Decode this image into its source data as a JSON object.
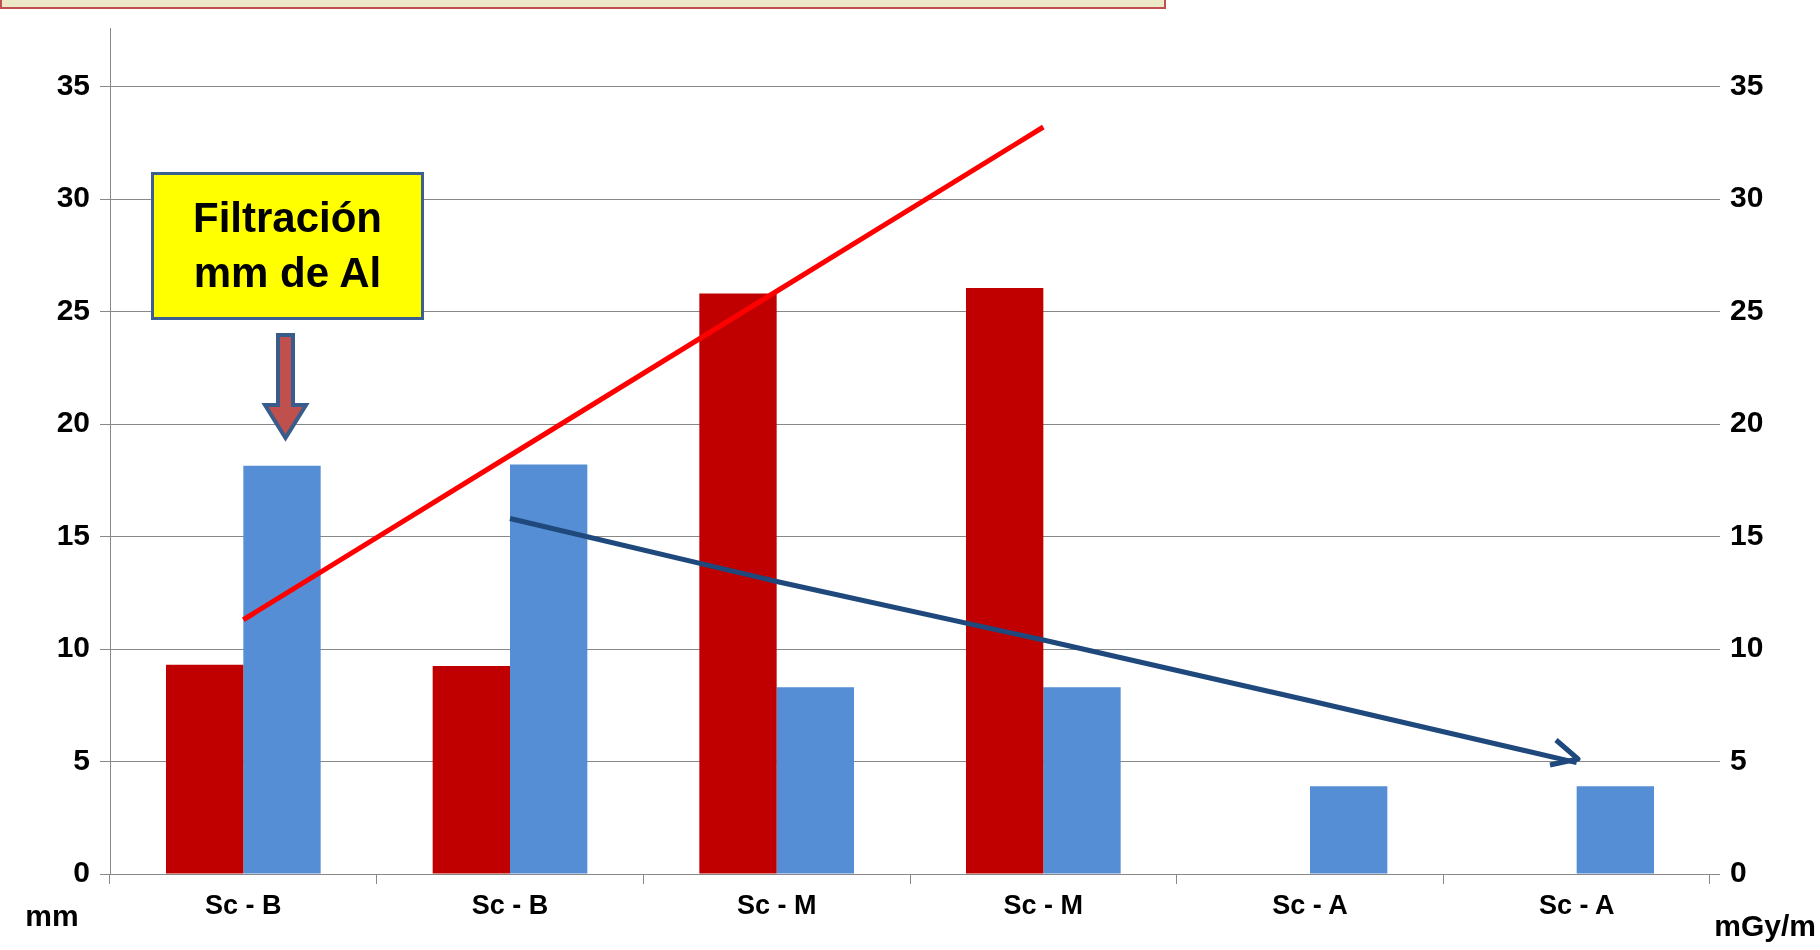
{
  "chart_data": {
    "type": "bar",
    "categories": [
      "Sc - B",
      "Sc - B",
      "Sc - M",
      "Sc - M",
      "Sc - A",
      "Sc - A"
    ],
    "series": [
      {
        "color": "#c00000",
        "values": [
          9.3,
          9.25,
          25.8,
          26.05,
          null,
          null
        ]
      },
      {
        "color": "#558ed5",
        "values": [
          18.15,
          18.2,
          8.3,
          8.3,
          3.9,
          3.9
        ]
      },
      {
        "type": "line",
        "color": "#ff0000",
        "values": [
          11.3,
          18.6,
          25.9,
          33.2,
          null,
          null
        ]
      },
      {
        "type": "line",
        "color": "#1f497d",
        "values": [
          null,
          15.8,
          13.0,
          10.4,
          7.7,
          4.95
        ]
      }
    ],
    "ylim": [
      0,
      37.6
    ],
    "yticks": [
      0,
      5,
      10,
      15,
      20,
      25,
      30,
      35
    ],
    "y2lim": [
      0,
      37.6
    ],
    "y2ticks": [
      0,
      5,
      10,
      15,
      20,
      25,
      30,
      35
    ],
    "ylabel": "mm",
    "y2label": "mGy/m",
    "grid": "y",
    "marker": "none",
    "annotations": [
      "Filtración mm de Al"
    ]
  }
}
